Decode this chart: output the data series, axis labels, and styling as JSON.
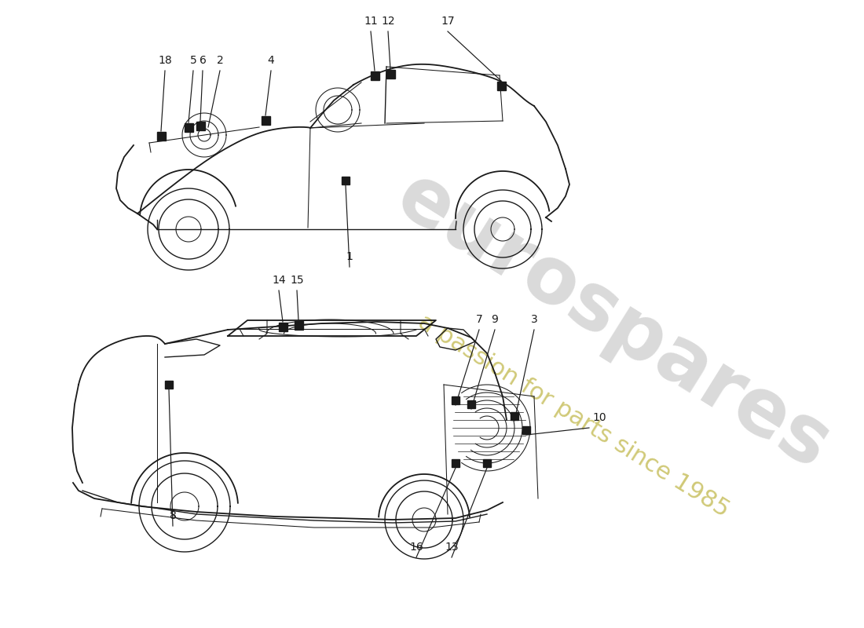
{
  "bg_color": "#ffffff",
  "line_color": "#1a1a1a",
  "watermark_text1": "eurospares",
  "watermark_text2": "a passion for parts since 1985",
  "watermark_color1": "#bbbbbb",
  "watermark_color2": "#c8c060",
  "fig_width": 11.0,
  "fig_height": 8.0,
  "dpi": 100
}
